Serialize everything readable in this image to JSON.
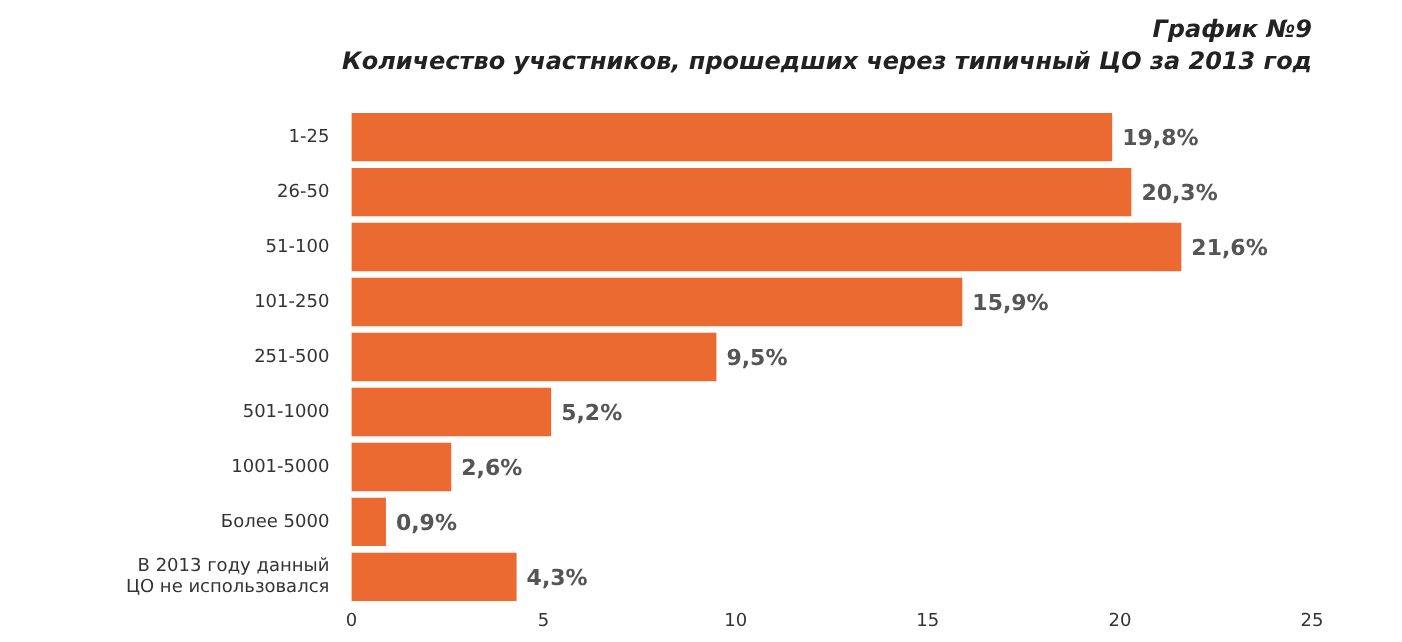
{
  "chart_data": {
    "type": "bar",
    "orientation": "horizontal",
    "title": "График №9",
    "subtitle": "Количество участников, прошедших через типичный ЦО за 2013 год",
    "categories": [
      "1-25",
      "26-50",
      "51-100",
      "101-250",
      "251-500",
      "501-1000",
      "1001-5000",
      "Более 5000",
      "В 2013 году данный\nЦО не использовался"
    ],
    "values": [
      19.8,
      20.3,
      21.6,
      15.9,
      9.5,
      5.2,
      2.6,
      0.9,
      4.3
    ],
    "value_labels": [
      "19,8%",
      "20,3%",
      "21,6%",
      "15,9%",
      "9,5%",
      "5,2%",
      "2,6%",
      "0,9%",
      "4,3%"
    ],
    "color": "#ea6a32",
    "xlim": [
      0,
      25
    ],
    "xticks": [
      0,
      5,
      10,
      15,
      20,
      25
    ],
    "grid": false
  }
}
